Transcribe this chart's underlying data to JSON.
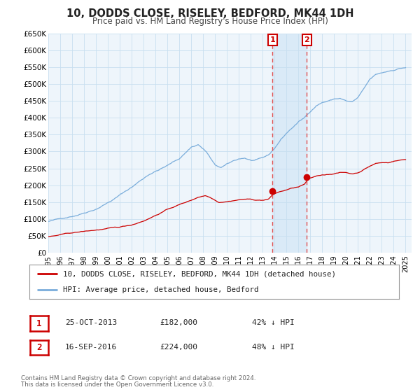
{
  "title": "10, DODDS CLOSE, RISELEY, BEDFORD, MK44 1DH",
  "subtitle": "Price paid vs. HM Land Registry's House Price Index (HPI)",
  "ylim": [
    0,
    650000
  ],
  "yticks": [
    0,
    50000,
    100000,
    150000,
    200000,
    250000,
    300000,
    350000,
    400000,
    450000,
    500000,
    550000,
    600000,
    650000
  ],
  "ytick_labels": [
    "£0",
    "£50K",
    "£100K",
    "£150K",
    "£200K",
    "£250K",
    "£300K",
    "£350K",
    "£400K",
    "£450K",
    "£500K",
    "£550K",
    "£600K",
    "£650K"
  ],
  "xlim_start": 1995.0,
  "xlim_end": 2025.5,
  "xticks": [
    1995,
    1996,
    1997,
    1998,
    1999,
    2000,
    2001,
    2002,
    2003,
    2004,
    2005,
    2006,
    2007,
    2008,
    2009,
    2010,
    2011,
    2012,
    2013,
    2014,
    2015,
    2016,
    2017,
    2018,
    2019,
    2020,
    2021,
    2022,
    2023,
    2024,
    2025
  ],
  "bg_color": "#ffffff",
  "plot_bg_color": "#eef5fb",
  "grid_color": "#c8dff0",
  "transaction1_date": 2013.82,
  "transaction1_value": 182000,
  "transaction1_label": "1",
  "transaction2_date": 2016.71,
  "transaction2_value": 224000,
  "transaction2_label": "2",
  "shaded_region_color": "#daeaf7",
  "vline_color": "#e05050",
  "property_color": "#cc0000",
  "hpi_color": "#7aaddb",
  "legend_label1": "10, DODDS CLOSE, RISELEY, BEDFORD, MK44 1DH (detached house)",
  "legend_label2": "HPI: Average price, detached house, Bedford",
  "table_row1": [
    "1",
    "25-OCT-2013",
    "£182,000",
    "42% ↓ HPI"
  ],
  "table_row2": [
    "2",
    "16-SEP-2016",
    "£224,000",
    "48% ↓ HPI"
  ],
  "footer_line1": "Contains HM Land Registry data © Crown copyright and database right 2024.",
  "footer_line2": "This data is licensed under the Open Government Licence v3.0."
}
